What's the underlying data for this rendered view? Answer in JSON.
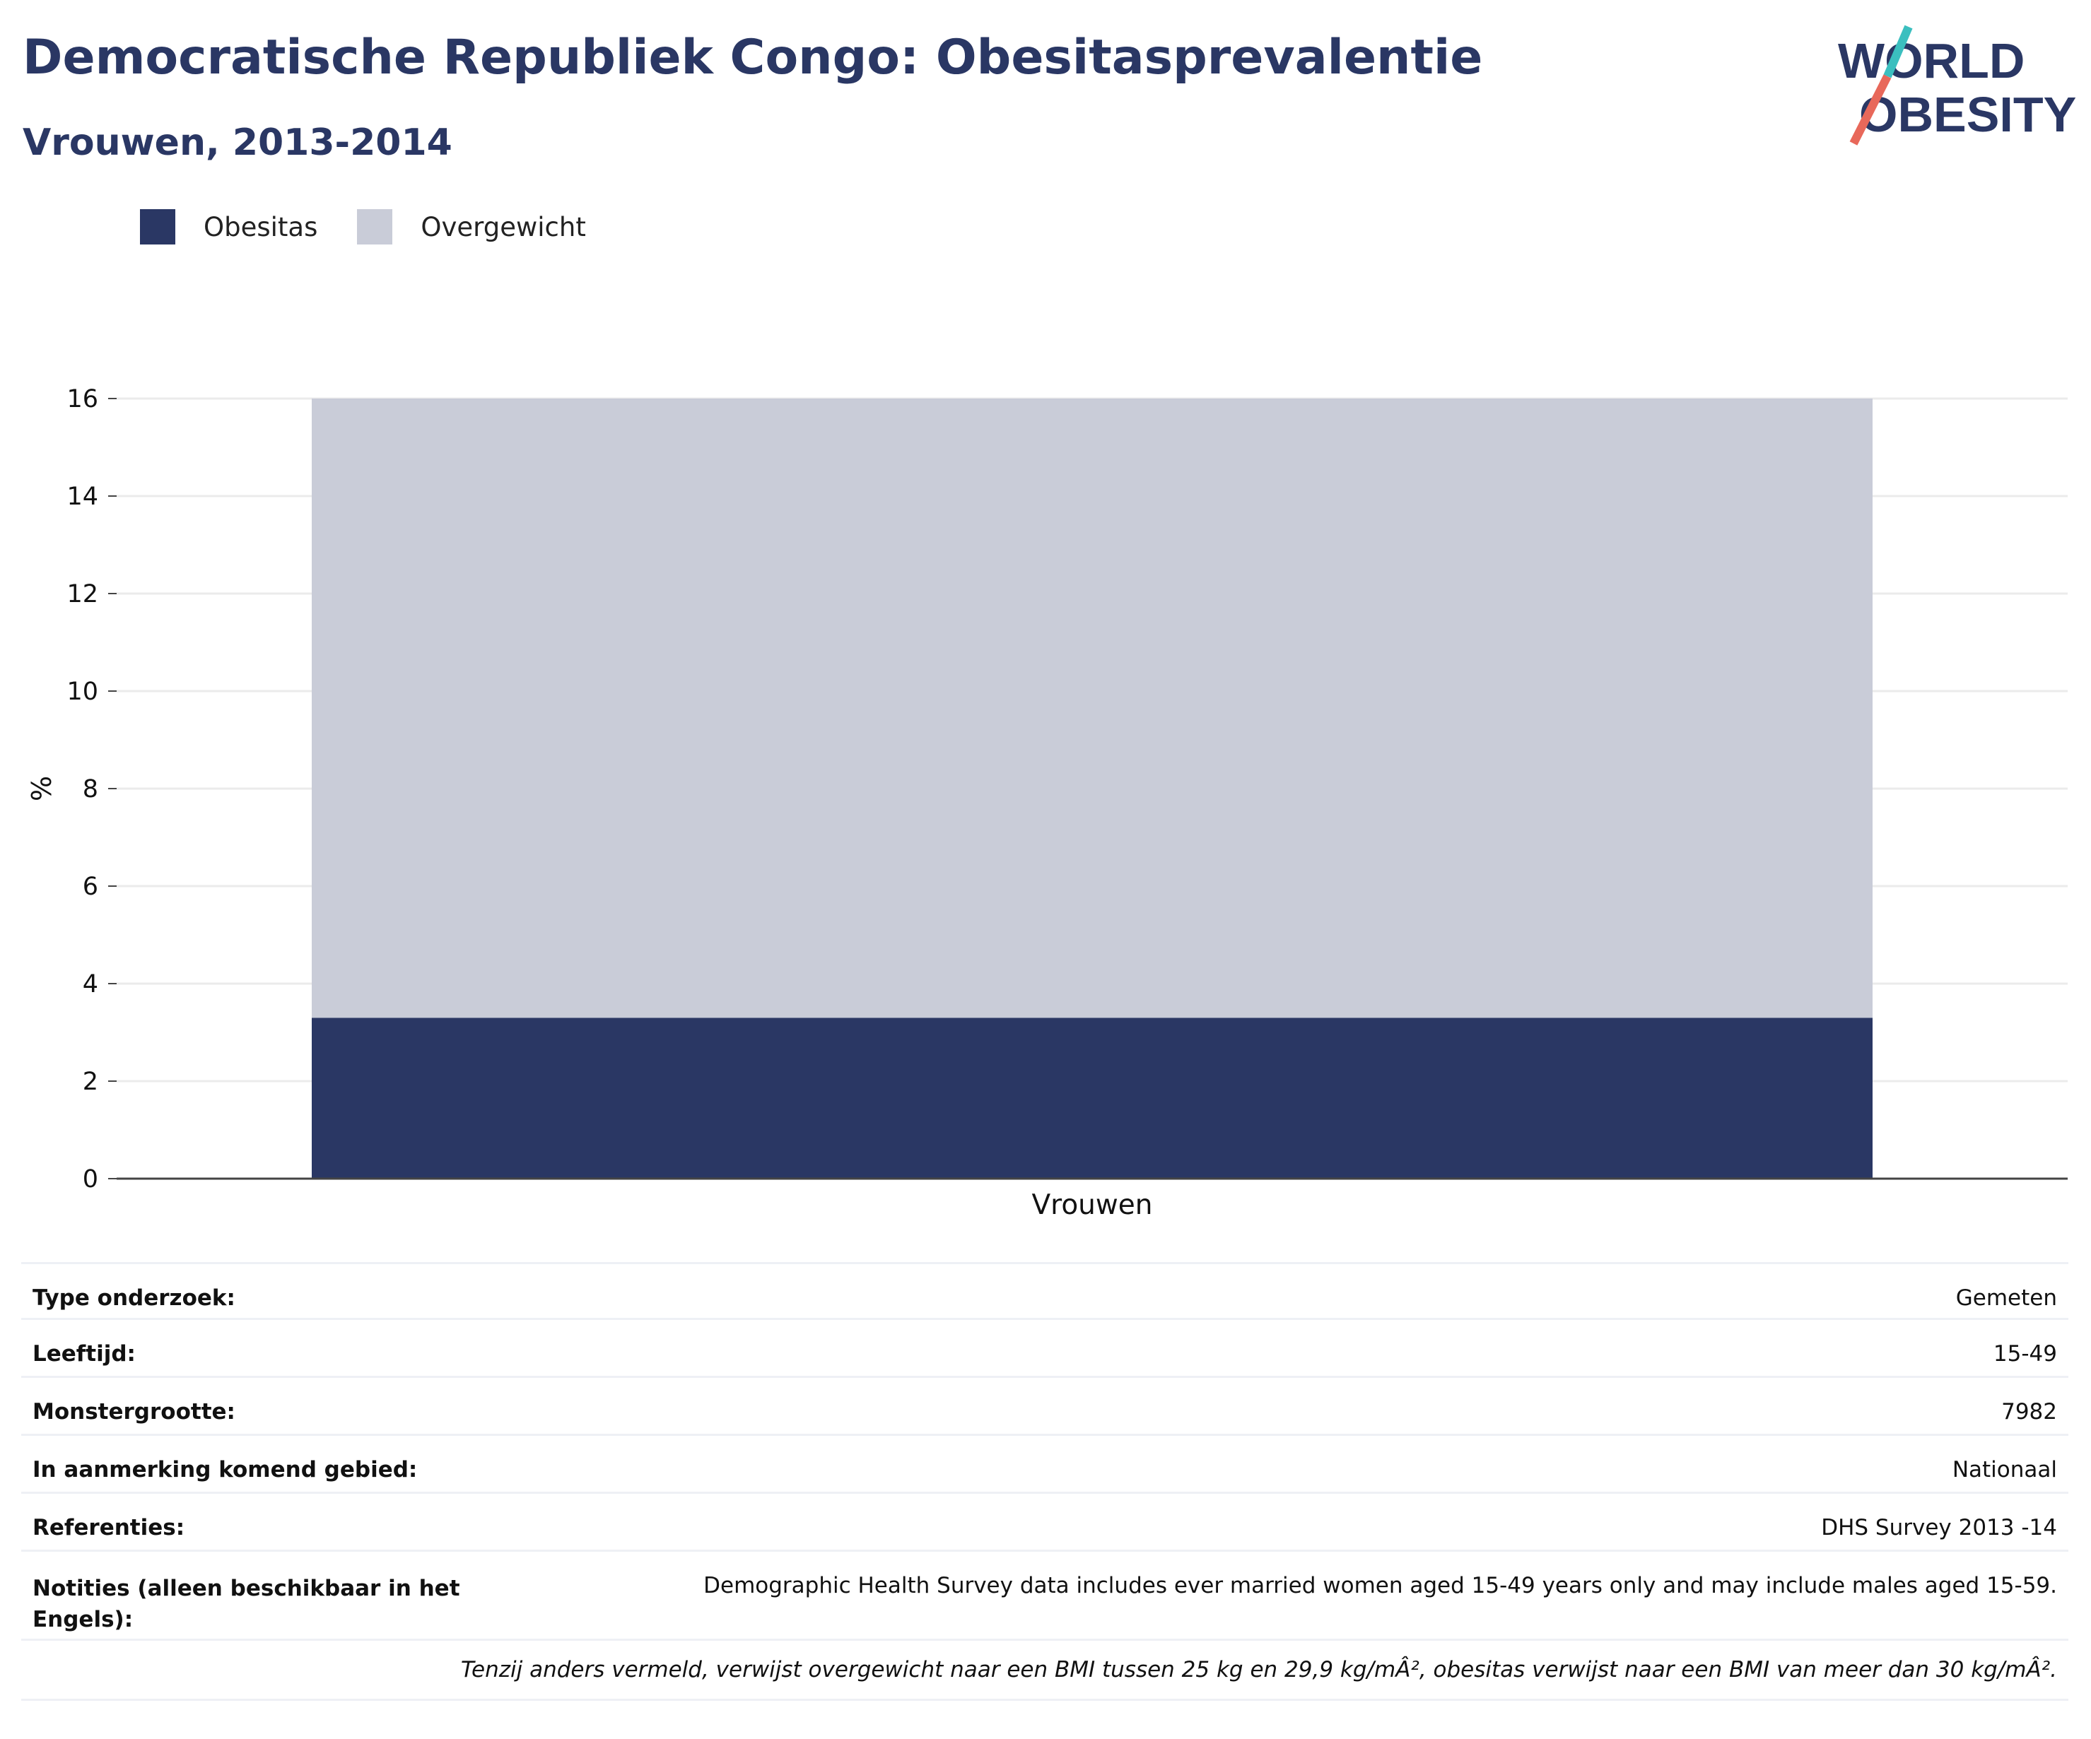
{
  "header": {
    "title": "Democratische Republiek Congo: Obesitasprevalentie",
    "subtitle": "Vrouwen, 2013-2014"
  },
  "logo": {
    "line1": "WORLD",
    "line2": "OBESITY"
  },
  "colors": {
    "obesity": "#2a3764",
    "overweight": "#c9ccd8",
    "title": "#2a3764"
  },
  "chart_data": {
    "type": "bar",
    "stacked": true,
    "categories": [
      "Vrouwen"
    ],
    "series": [
      {
        "name": "Obesitas",
        "values": [
          3.3
        ],
        "color": "#2a3764"
      },
      {
        "name": "Overgewicht",
        "values": [
          12.7
        ],
        "color": "#c9ccd8"
      }
    ],
    "xlabel": "",
    "ylabel": "%",
    "ylim": [
      0,
      16
    ],
    "yticks": [
      0,
      2,
      4,
      6,
      8,
      10,
      12,
      14,
      16
    ],
    "grid": true,
    "legend": "top-left"
  },
  "info": {
    "rows": [
      {
        "key": "Type onderzoek:",
        "value": "Gemeten"
      },
      {
        "key": "Leeftijd:",
        "value": "15-49"
      },
      {
        "key": "Monstergrootte:",
        "value": "7982"
      },
      {
        "key": "In aanmerking komend gebied:",
        "value": "Nationaal"
      },
      {
        "key": "Referenties:",
        "value": "DHS Survey 2013 -14"
      },
      {
        "key": "Notities (alleen beschikbaar in het Engels):",
        "value": "Demographic Health Survey data includes ever married women aged 15-49 years only and may include males aged 15-59."
      }
    ],
    "note": "Tenzij anders vermeld, verwijst overgewicht naar een BMI tussen 25 kg en 29,9 kg/mÂ², obesitas verwijst naar een BMI van meer dan 30 kg/mÂ²."
  }
}
